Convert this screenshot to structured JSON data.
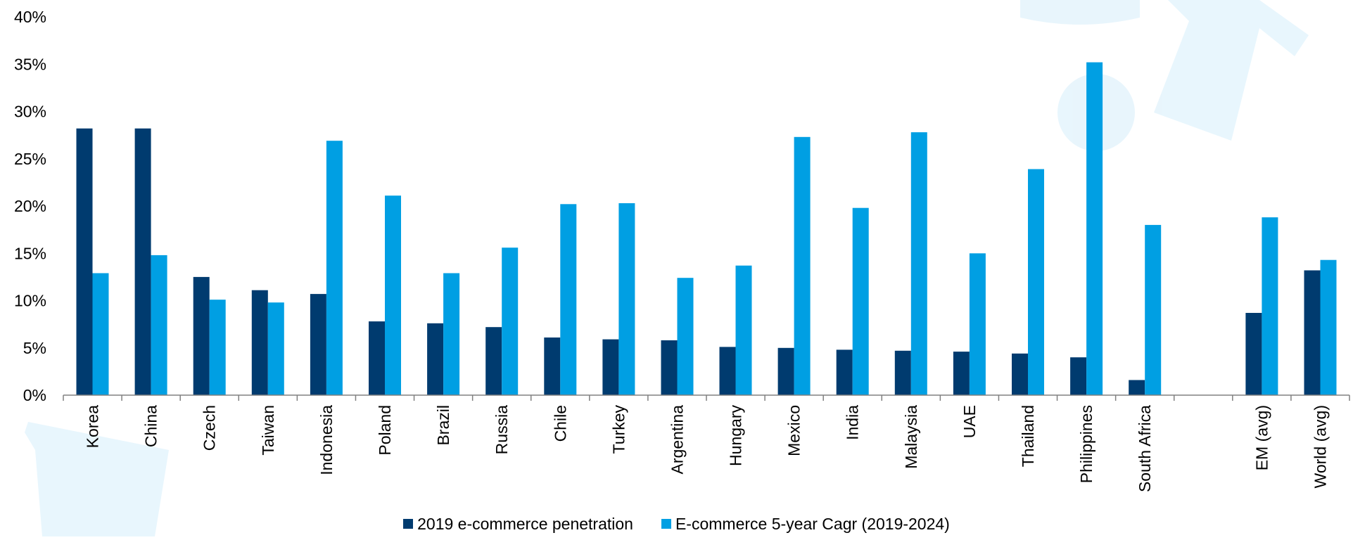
{
  "chart_data": {
    "type": "bar",
    "title": "",
    "xlabel": "",
    "ylabel": "",
    "ylim": [
      0,
      40
    ],
    "y_ticks": [
      "0%",
      "5%",
      "10%",
      "15%",
      "20%",
      "25%",
      "30%",
      "35%",
      "40%"
    ],
    "y_tick_values": [
      0,
      5,
      10,
      15,
      20,
      25,
      30,
      35,
      40
    ],
    "categories": [
      "Korea",
      "China",
      "Czech",
      "Taiwan",
      "Indonesia",
      "Poland",
      "Brazil",
      "Russia",
      "Chile",
      "Turkey",
      "Argentina",
      "Hungary",
      "Mexico",
      "India",
      "Malaysia",
      "UAE",
      "Thailand",
      "Philippines",
      "South Africa",
      "",
      "EM (avg)",
      "World (avg)"
    ],
    "series": [
      {
        "name": "2019 e-commerce penetration",
        "color": "#003B6F",
        "values": [
          28.2,
          28.2,
          12.5,
          11.1,
          10.7,
          7.8,
          7.6,
          7.2,
          6.1,
          5.9,
          5.8,
          5.1,
          5.0,
          4.8,
          4.7,
          4.6,
          4.4,
          4.0,
          1.6,
          null,
          8.7,
          13.2
        ]
      },
      {
        "name": "E-commerce 5-year Cagr (2019-2024)",
        "color": "#009FE3",
        "values": [
          12.9,
          14.8,
          10.1,
          9.8,
          26.9,
          21.1,
          12.9,
          15.6,
          20.2,
          20.3,
          12.4,
          13.7,
          27.3,
          19.8,
          27.8,
          15.0,
          23.9,
          35.2,
          18.0,
          null,
          18.8,
          14.3
        ]
      }
    ],
    "grid": false,
    "legend_position": "bottom-center"
  }
}
